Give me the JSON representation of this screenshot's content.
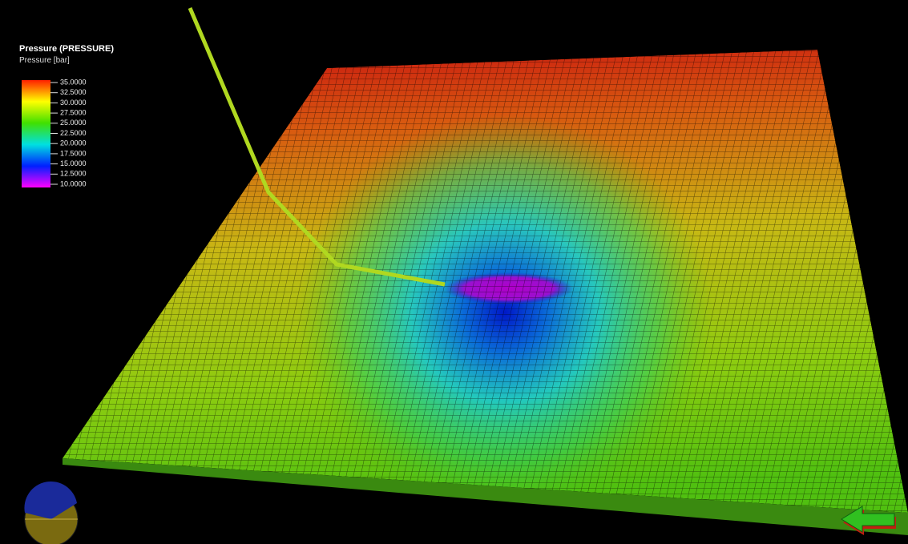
{
  "legend": {
    "title": "Pressure (PRESSURE)",
    "subtitle": "Pressure [bar]",
    "labels": [
      "35.0000",
      "32.5000",
      "30.0000",
      "27.5000",
      "25.0000",
      "22.5000",
      "20.0000",
      "17.5000",
      "15.0000",
      "12.5000",
      "10.0000"
    ]
  }
}
